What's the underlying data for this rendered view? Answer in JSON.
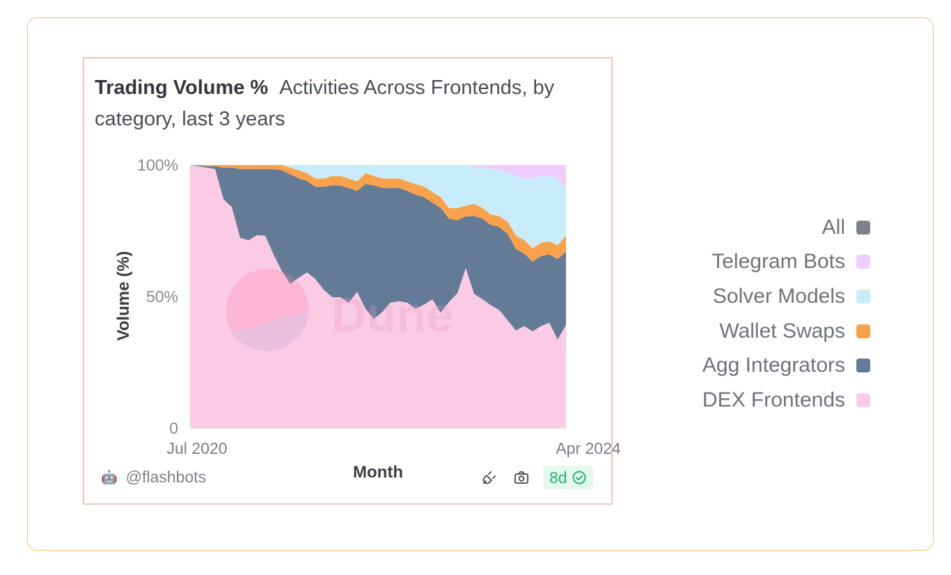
{
  "chart_data": {
    "type": "area",
    "stacked": true,
    "normalized": true,
    "title": "Trading Volume %",
    "subtitle": "Activities Across Frontends, by category, last 3 years",
    "xlabel": "Month",
    "ylabel": "Volume (%)",
    "x_tick_labels": [
      "Jul 2020",
      "Apr 2024"
    ],
    "y_tick_labels": [
      "0",
      "50%",
      "100%"
    ],
    "ylim": [
      0,
      100
    ],
    "x": [
      "2020-07",
      "2020-08",
      "2020-09",
      "2020-10",
      "2020-11",
      "2020-12",
      "2021-01",
      "2021-02",
      "2021-03",
      "2021-04",
      "2021-05",
      "2021-06",
      "2021-07",
      "2021-08",
      "2021-09",
      "2021-10",
      "2021-11",
      "2021-12",
      "2022-01",
      "2022-02",
      "2022-03",
      "2022-04",
      "2022-05",
      "2022-06",
      "2022-07",
      "2022-08",
      "2022-09",
      "2022-10",
      "2022-11",
      "2022-12",
      "2023-01",
      "2023-02",
      "2023-03",
      "2023-04",
      "2023-05",
      "2023-06",
      "2023-07",
      "2023-08",
      "2023-09",
      "2023-10",
      "2023-11",
      "2023-12",
      "2024-01",
      "2024-02",
      "2024-03",
      "2024-04"
    ],
    "series": [
      {
        "name": "DEX Frontends",
        "color": "#fbcbe6",
        "values": [
          100,
          99.5,
          99,
          98.5,
          87,
          84,
          72,
          71,
          73,
          72,
          65,
          59,
          54,
          56,
          58,
          55,
          51,
          48,
          48,
          46,
          50,
          44,
          40,
          43,
          46,
          47,
          46,
          44,
          46,
          48,
          43,
          47,
          50,
          59,
          50,
          48,
          46,
          44,
          40,
          36,
          38,
          36,
          38,
          40,
          32,
          38
        ]
      },
      {
        "name": "Agg Integrators",
        "color": "#647b95",
        "values": [
          0,
          0.3,
          0.5,
          1,
          12,
          15,
          26,
          27,
          25,
          25,
          32,
          38,
          41,
          37,
          34,
          34,
          38,
          41,
          41,
          42,
          37,
          46,
          49,
          46,
          42,
          42,
          41,
          42,
          40,
          36,
          39,
          31,
          27,
          19,
          29,
          30,
          30,
          31,
          32,
          30,
          27,
          26,
          26,
          26,
          29,
          27
        ]
      },
      {
        "name": "Wallet Swaps",
        "color": "#f9a24b",
        "values": [
          0,
          0.2,
          0.5,
          0.5,
          1,
          1,
          1.5,
          1.5,
          1.5,
          1.5,
          1.5,
          2,
          2.5,
          3,
          3,
          3,
          3,
          3.5,
          3.5,
          3.5,
          3.5,
          4,
          3.5,
          3.5,
          3.5,
          3.5,
          3.5,
          4,
          4,
          4,
          4,
          4,
          4.5,
          4,
          4.5,
          4,
          4,
          4,
          4.5,
          5,
          5,
          5,
          5,
          5,
          5,
          6
        ]
      },
      {
        "name": "Solver Models",
        "color": "#c9ecfb",
        "values": [
          0,
          0,
          0,
          0,
          0,
          0,
          0,
          0,
          0,
          0,
          0,
          0,
          1,
          2,
          3,
          5,
          5,
          4,
          4,
          5,
          6,
          3,
          4,
          5,
          5,
          5,
          6,
          7,
          8,
          10,
          12,
          16,
          16,
          15,
          14,
          15,
          17,
          17,
          18,
          22,
          23,
          26,
          25,
          25,
          24,
          17
        ]
      },
      {
        "name": "Telegram Bots",
        "color": "#efcdfa",
        "values": [
          0,
          0,
          0,
          0,
          0,
          0,
          0,
          0,
          0,
          0,
          0,
          0,
          0,
          0,
          0,
          0,
          0,
          0,
          0,
          0,
          0,
          0,
          0,
          0,
          0,
          0,
          0,
          0,
          0,
          0,
          0,
          0,
          0,
          0,
          0.5,
          1,
          1.5,
          2,
          3,
          4,
          5,
          5,
          4,
          4,
          5,
          9
        ]
      }
    ],
    "legend": {
      "position": "right",
      "entries": [
        {
          "name": "All",
          "color": "#808389"
        },
        {
          "name": "Telegram Bots",
          "color": "#efcdfa"
        },
        {
          "name": "Solver Models",
          "color": "#c9ecfb"
        },
        {
          "name": "Wallet Swaps",
          "color": "#f9a24b"
        },
        {
          "name": "Agg Integrators",
          "color": "#647b95"
        },
        {
          "name": "DEX Frontends",
          "color": "#fbcbe6"
        }
      ]
    },
    "watermark": "Dune",
    "grid": false
  },
  "footer": {
    "author": "@flashbots",
    "freshness_badge": "8d"
  },
  "icons": {
    "author": "flashbots-avatar-icon",
    "embed": "plug-icon",
    "screenshot": "camera-icon",
    "verified": "check-circle-icon"
  }
}
